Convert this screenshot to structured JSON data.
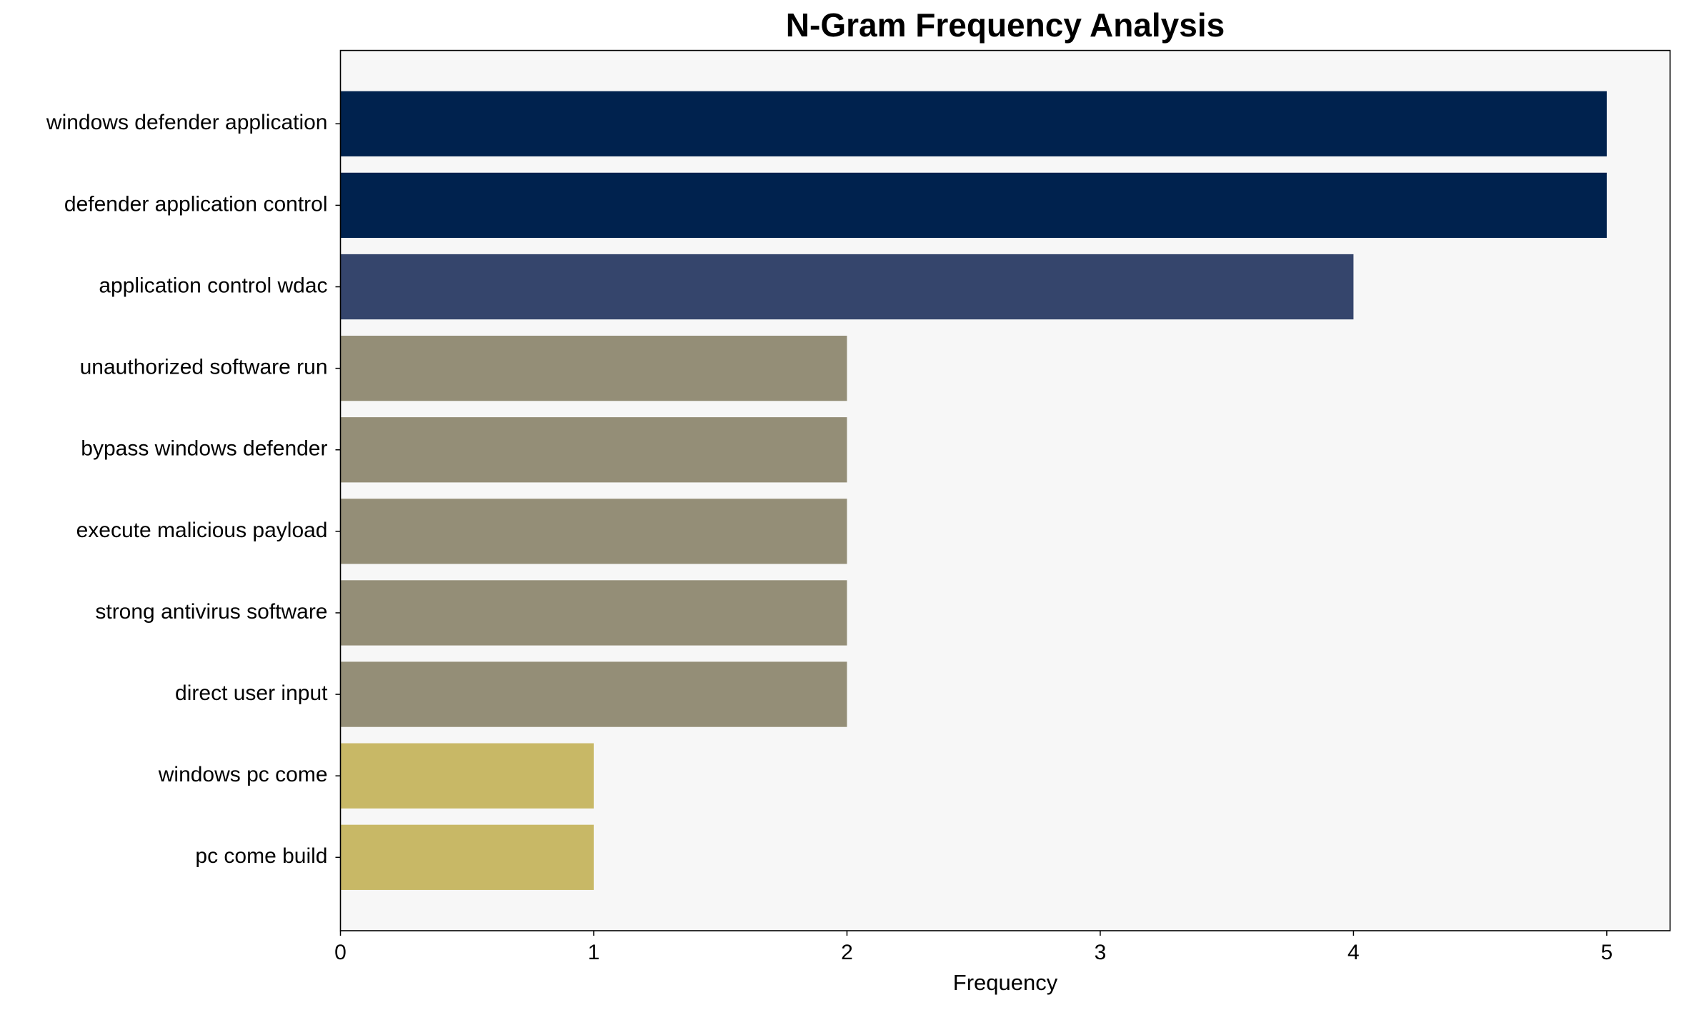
{
  "chart_data": {
    "type": "barh",
    "title": "N-Gram Frequency Analysis",
    "x_label": "Frequency",
    "categories": [
      "windows defender application",
      "defender application control",
      "application control wdac",
      "unauthorized software run",
      "bypass windows defender",
      "execute malicious payload",
      "strong antivirus software",
      "direct user input",
      "windows pc come",
      "pc come build"
    ],
    "values": [
      5,
      5,
      4,
      2,
      2,
      2,
      2,
      2,
      1,
      1
    ],
    "colors": [
      "#00224e",
      "#00224e",
      "#35456c",
      "#948e77",
      "#948e77",
      "#948e77",
      "#948e77",
      "#948e77",
      "#c8b866",
      "#c8b866"
    ],
    "xlim": [
      0,
      5.25
    ],
    "xticks": [
      0,
      1,
      2,
      3,
      4,
      5
    ],
    "background": "#f7f7f7"
  }
}
